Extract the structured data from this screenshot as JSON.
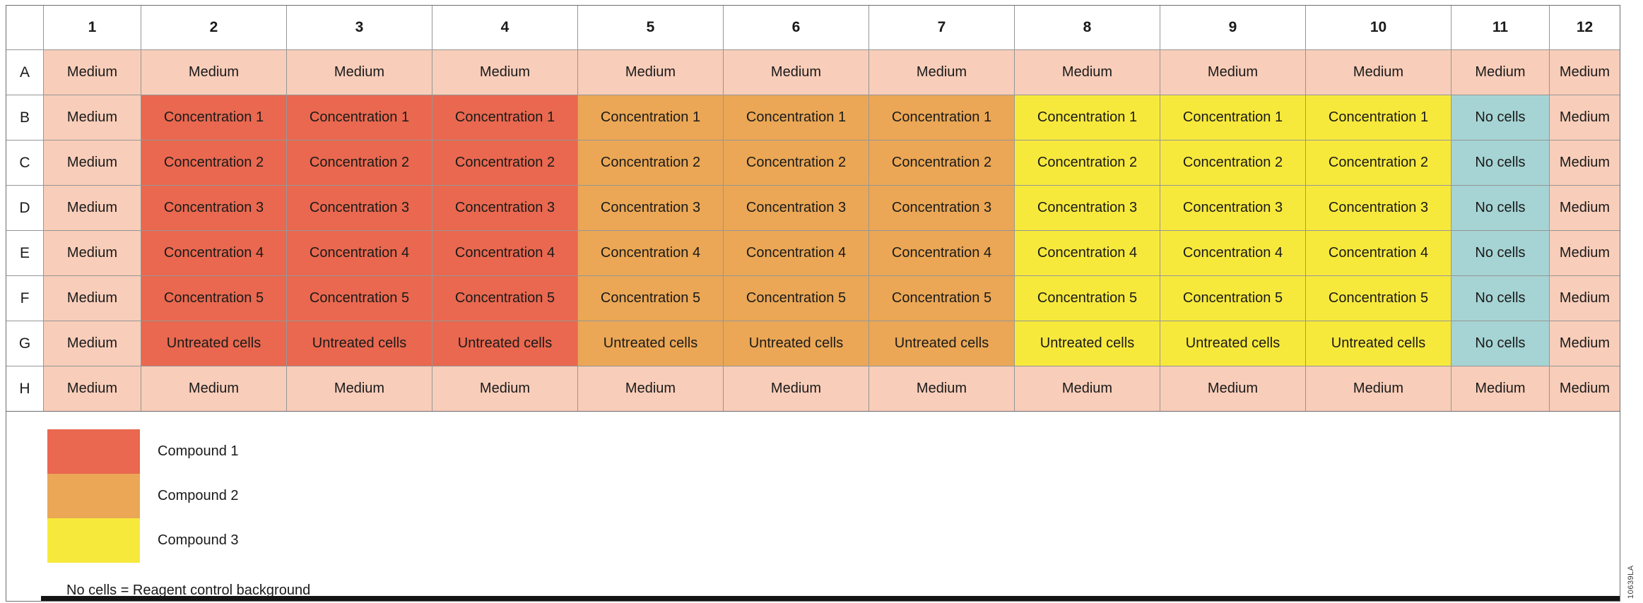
{
  "figure_id": "10639LA",
  "colors": {
    "medium": "#F8CDB9",
    "compound1": "#E9684F",
    "compound2": "#EBA755",
    "compound3": "#F7E93C",
    "no_cells": "#A6D3D3",
    "grid_line": "#969696",
    "outer_border": "#6e6e6e",
    "bottom_bar": "#141414",
    "text": "#1a1a1a"
  },
  "plate": {
    "column_headers": [
      "1",
      "2",
      "3",
      "4",
      "5",
      "6",
      "7",
      "8",
      "9",
      "10",
      "11",
      "12"
    ],
    "rows": [
      {
        "label": "A",
        "cells": [
          {
            "text": "Medium",
            "color": "medium"
          },
          {
            "text": "Medium",
            "color": "medium"
          },
          {
            "text": "Medium",
            "color": "medium"
          },
          {
            "text": "Medium",
            "color": "medium"
          },
          {
            "text": "Medium",
            "color": "medium"
          },
          {
            "text": "Medium",
            "color": "medium"
          },
          {
            "text": "Medium",
            "color": "medium"
          },
          {
            "text": "Medium",
            "color": "medium"
          },
          {
            "text": "Medium",
            "color": "medium"
          },
          {
            "text": "Medium",
            "color": "medium"
          },
          {
            "text": "Medium",
            "color": "medium"
          },
          {
            "text": "Medium",
            "color": "medium"
          }
        ]
      },
      {
        "label": "B",
        "cells": [
          {
            "text": "Medium",
            "color": "medium"
          },
          {
            "text": "Concentration 1",
            "color": "compound1"
          },
          {
            "text": "Concentration 1",
            "color": "compound1"
          },
          {
            "text": "Concentration 1",
            "color": "compound1"
          },
          {
            "text": "Concentration 1",
            "color": "compound2"
          },
          {
            "text": "Concentration 1",
            "color": "compound2"
          },
          {
            "text": "Concentration 1",
            "color": "compound2"
          },
          {
            "text": "Concentration 1",
            "color": "compound3"
          },
          {
            "text": "Concentration 1",
            "color": "compound3"
          },
          {
            "text": "Concentration 1",
            "color": "compound3"
          },
          {
            "text": "No cells",
            "color": "no_cells"
          },
          {
            "text": "Medium",
            "color": "medium"
          }
        ]
      },
      {
        "label": "C",
        "cells": [
          {
            "text": "Medium",
            "color": "medium"
          },
          {
            "text": "Concentration 2",
            "color": "compound1"
          },
          {
            "text": "Concentration 2",
            "color": "compound1"
          },
          {
            "text": "Concentration 2",
            "color": "compound1"
          },
          {
            "text": "Concentration 2",
            "color": "compound2"
          },
          {
            "text": "Concentration 2",
            "color": "compound2"
          },
          {
            "text": "Concentration 2",
            "color": "compound2"
          },
          {
            "text": "Concentration 2",
            "color": "compound3"
          },
          {
            "text": "Concentration 2",
            "color": "compound3"
          },
          {
            "text": "Concentration 2",
            "color": "compound3"
          },
          {
            "text": "No cells",
            "color": "no_cells"
          },
          {
            "text": "Medium",
            "color": "medium"
          }
        ]
      },
      {
        "label": "D",
        "cells": [
          {
            "text": "Medium",
            "color": "medium"
          },
          {
            "text": "Concentration 3",
            "color": "compound1"
          },
          {
            "text": "Concentration 3",
            "color": "compound1"
          },
          {
            "text": "Concentration 3",
            "color": "compound1"
          },
          {
            "text": "Concentration 3",
            "color": "compound2"
          },
          {
            "text": "Concentration 3",
            "color": "compound2"
          },
          {
            "text": "Concentration 3",
            "color": "compound2"
          },
          {
            "text": "Concentration 3",
            "color": "compound3"
          },
          {
            "text": "Concentration 3",
            "color": "compound3"
          },
          {
            "text": "Concentration 3",
            "color": "compound3"
          },
          {
            "text": "No cells",
            "color": "no_cells"
          },
          {
            "text": "Medium",
            "color": "medium"
          }
        ]
      },
      {
        "label": "E",
        "cells": [
          {
            "text": "Medium",
            "color": "medium"
          },
          {
            "text": "Concentration 4",
            "color": "compound1"
          },
          {
            "text": "Concentration 4",
            "color": "compound1"
          },
          {
            "text": "Concentration 4",
            "color": "compound1"
          },
          {
            "text": "Concentration 4",
            "color": "compound2"
          },
          {
            "text": "Concentration 4",
            "color": "compound2"
          },
          {
            "text": "Concentration 4",
            "color": "compound2"
          },
          {
            "text": "Concentration 4",
            "color": "compound3"
          },
          {
            "text": "Concentration 4",
            "color": "compound3"
          },
          {
            "text": "Concentration 4",
            "color": "compound3"
          },
          {
            "text": "No cells",
            "color": "no_cells"
          },
          {
            "text": "Medium",
            "color": "medium"
          }
        ]
      },
      {
        "label": "F",
        "cells": [
          {
            "text": "Medium",
            "color": "medium"
          },
          {
            "text": "Concentration 5",
            "color": "compound1"
          },
          {
            "text": "Concentration 5",
            "color": "compound1"
          },
          {
            "text": "Concentration 5",
            "color": "compound1"
          },
          {
            "text": "Concentration 5",
            "color": "compound2"
          },
          {
            "text": "Concentration 5",
            "color": "compound2"
          },
          {
            "text": "Concentration 5",
            "color": "compound2"
          },
          {
            "text": "Concentration 5",
            "color": "compound3"
          },
          {
            "text": "Concentration 5",
            "color": "compound3"
          },
          {
            "text": "Concentration 5",
            "color": "compound3"
          },
          {
            "text": "No cells",
            "color": "no_cells"
          },
          {
            "text": "Medium",
            "color": "medium"
          }
        ]
      },
      {
        "label": "G",
        "cells": [
          {
            "text": "Medium",
            "color": "medium"
          },
          {
            "text": "Untreated cells",
            "color": "compound1"
          },
          {
            "text": "Untreated cells",
            "color": "compound1"
          },
          {
            "text": "Untreated cells",
            "color": "compound1"
          },
          {
            "text": "Untreated cells",
            "color": "compound2"
          },
          {
            "text": "Untreated cells",
            "color": "compound2"
          },
          {
            "text": "Untreated cells",
            "color": "compound2"
          },
          {
            "text": "Untreated cells",
            "color": "compound3"
          },
          {
            "text": "Untreated cells",
            "color": "compound3"
          },
          {
            "text": "Untreated cells",
            "color": "compound3"
          },
          {
            "text": "No cells",
            "color": "no_cells"
          },
          {
            "text": "Medium",
            "color": "medium"
          }
        ]
      },
      {
        "label": "H",
        "cells": [
          {
            "text": "Medium",
            "color": "medium"
          },
          {
            "text": "Medium",
            "color": "medium"
          },
          {
            "text": "Medium",
            "color": "medium"
          },
          {
            "text": "Medium",
            "color": "medium"
          },
          {
            "text": "Medium",
            "color": "medium"
          },
          {
            "text": "Medium",
            "color": "medium"
          },
          {
            "text": "Medium",
            "color": "medium"
          },
          {
            "text": "Medium",
            "color": "medium"
          },
          {
            "text": "Medium",
            "color": "medium"
          },
          {
            "text": "Medium",
            "color": "medium"
          },
          {
            "text": "Medium",
            "color": "medium"
          },
          {
            "text": "Medium",
            "color": "medium"
          }
        ]
      }
    ]
  },
  "legend": {
    "items": [
      {
        "label": "Compound 1",
        "color": "compound1"
      },
      {
        "label": "Compound 2",
        "color": "compound2"
      },
      {
        "label": "Compound 3",
        "color": "compound3"
      }
    ],
    "note": "No cells = Reagent control background"
  }
}
